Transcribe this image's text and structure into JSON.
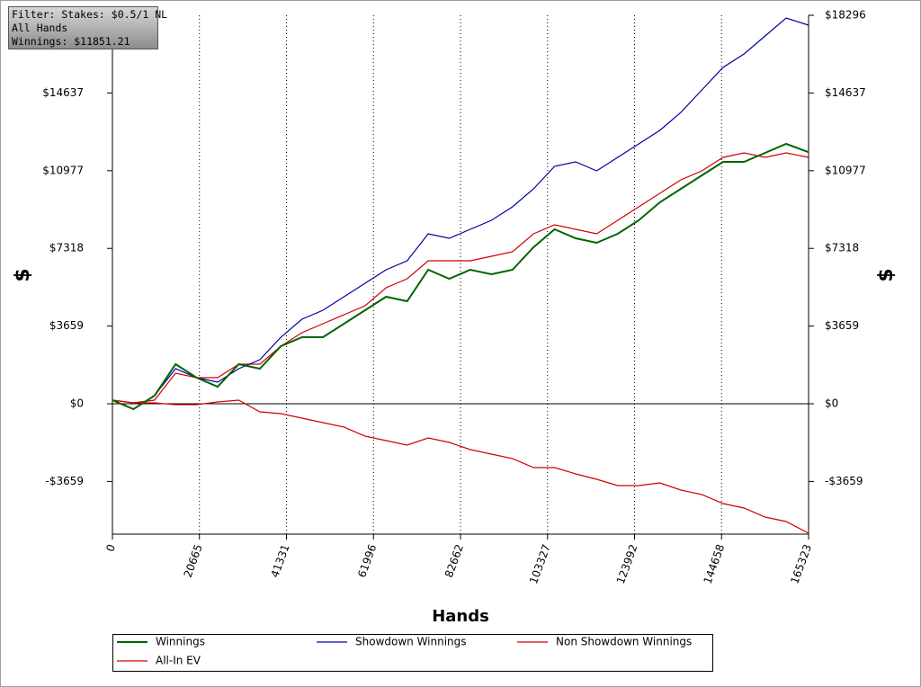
{
  "chart_data": {
    "type": "line",
    "info_box": [
      "Filter: Stakes: $0.5/1 NL",
      "All Hands",
      "Winnings: $11851.21"
    ],
    "x_label": "Hands",
    "y_label": "$",
    "x": [
      0,
      5000,
      10000,
      15000,
      20000,
      25000,
      30000,
      35000,
      40000,
      45000,
      50000,
      55000,
      60000,
      65000,
      70000,
      75000,
      80000,
      85000,
      90000,
      95000,
      100000,
      105000,
      110000,
      115000,
      120000,
      125000,
      130000,
      135000,
      140000,
      145000,
      150000,
      155000,
      160000,
      165323
    ],
    "series": [
      {
        "name": "Winnings",
        "color": "#006400",
        "values": [
          169,
          -254,
          381,
          1863,
          1228,
          805,
          1863,
          1652,
          2710,
          3134,
          3134,
          3769,
          4404,
          5040,
          4828,
          6310,
          5887,
          6310,
          6098,
          6310,
          7369,
          8216,
          7792,
          7581,
          8004,
          8639,
          9486,
          10121,
          10757,
          11392,
          11392,
          11816,
          12239,
          11851
        ]
      },
      {
        "name": "Showdown Winnings",
        "color": "#0000a0",
        "values": [
          169,
          -254,
          381,
          1652,
          1228,
          1017,
          1652,
          2075,
          3134,
          3981,
          4404,
          5040,
          5675,
          6310,
          6734,
          8004,
          7792,
          8216,
          8639,
          9274,
          10121,
          11180,
          11392,
          10969,
          11604,
          12239,
          12875,
          13722,
          14780,
          15839,
          16474,
          17321,
          18168,
          17829
        ]
      },
      {
        "name": "Non Showdown Winnings",
        "color": "#d00000",
        "values": [
          169,
          42,
          42,
          -42,
          -42,
          85,
          169,
          -381,
          -466,
          -678,
          -889,
          -1101,
          -1525,
          -1736,
          -1948,
          -1609,
          -1821,
          -2160,
          -2372,
          -2584,
          -3007,
          -3007,
          -3303,
          -3557,
          -3854,
          -3854,
          -3727,
          -4066,
          -4277,
          -4701,
          -4912,
          -5336,
          -5548,
          -6098
        ]
      },
      {
        "name": "All-In EV",
        "color": "#d00000",
        "values": [
          169,
          42,
          169,
          1440,
          1228,
          1228,
          1863,
          1863,
          2710,
          3346,
          3769,
          4193,
          4616,
          5463,
          5887,
          6734,
          6734,
          6734,
          6945,
          7157,
          8004,
          8427,
          8216,
          8004,
          8639,
          9274,
          9910,
          10545,
          10969,
          11604,
          11816,
          11604,
          11816,
          11604
        ]
      }
    ],
    "xlim": [
      0,
      165323
    ],
    "xticks": [
      0,
      20665,
      41331,
      61996,
      82662,
      103327,
      123992,
      144658,
      165323
    ],
    "ylim": [
      -6140,
      18296
    ],
    "yticks": [
      {
        "value": -3659,
        "label": "-$3659"
      },
      {
        "value": 0,
        "label": "$0"
      },
      {
        "value": 3659,
        "label": "$3659"
      },
      {
        "value": 7318,
        "label": "$7318"
      },
      {
        "value": 10977,
        "label": "$10977"
      },
      {
        "value": 14637,
        "label": "$14637"
      },
      {
        "value": 18296,
        "label": "$18296"
      }
    ],
    "grid": "x",
    "legend": "bottom"
  }
}
